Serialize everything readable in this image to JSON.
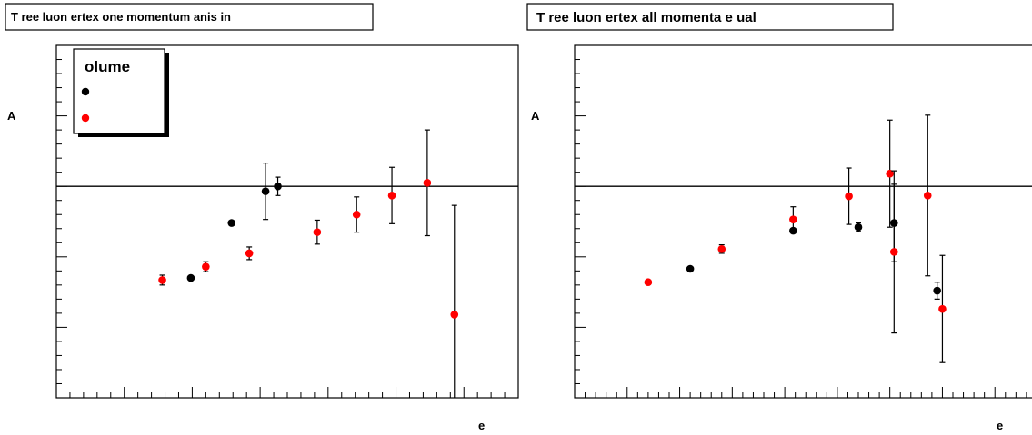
{
  "chart_data": [
    {
      "type": "scatter",
      "title": "T ree  luon  ertex  one momentum  anis in",
      "xlabel": "e",
      "ylabel": "A",
      "legend": {
        "title": "olume",
        "placement": "top-left",
        "entries": [
          "",
          ""
        ]
      },
      "reference_line_y": 0,
      "series": [
        {
          "color": "#000000",
          "points": [
            {
              "x": 0.49,
              "y": -1.3,
              "err": 0.0
            },
            {
              "x": 0.79,
              "y": -0.52,
              "err": 0.0
            },
            {
              "x": 1.04,
              "y": -0.07,
              "err": 0.4
            },
            {
              "x": 1.13,
              "y": 0.0,
              "err": 0.13
            }
          ]
        },
        {
          "color": "#ff0000",
          "points": [
            {
              "x": 0.28,
              "y": -1.33,
              "err": 0.07
            },
            {
              "x": 0.6,
              "y": -1.14,
              "err": 0.07
            },
            {
              "x": 0.92,
              "y": -0.95,
              "err": 0.09
            },
            {
              "x": 1.42,
              "y": -0.65,
              "err": 0.17
            },
            {
              "x": 1.71,
              "y": -0.4,
              "err": 0.25
            },
            {
              "x": 1.97,
              "y": -0.13,
              "err": 0.4
            },
            {
              "x": 2.23,
              "y": 0.05,
              "err": 0.75
            },
            {
              "x": 2.43,
              "y": -1.82,
              "err": 1.55
            }
          ]
        }
      ],
      "xlim": [
        -0.5,
        2.9
      ],
      "ylim": [
        -3.0,
        2.0
      ]
    },
    {
      "type": "scatter",
      "title": "T ree  luon  ertex  all momenta e ual",
      "xlabel": "e",
      "ylabel": "A",
      "reference_line_y": 0,
      "series": [
        {
          "color": "#000000",
          "points": [
            {
              "x": 0.1,
              "y": -1.17,
              "err": 0.0
            },
            {
              "x": 1.08,
              "y": -0.63,
              "err": 0.0
            },
            {
              "x": 1.7,
              "y": -0.58,
              "err": 0.06
            },
            {
              "x": 2.04,
              "y": -0.52,
              "err": 0.55
            },
            {
              "x": 2.45,
              "y": -1.48,
              "err": 0.12
            }
          ]
        },
        {
          "color": "#ff0000",
          "points": [
            {
              "x": -0.3,
              "y": -1.36,
              "err": 0.0
            },
            {
              "x": 0.4,
              "y": -0.89,
              "err": 0.06
            },
            {
              "x": 1.08,
              "y": -0.47,
              "err": 0.18
            },
            {
              "x": 1.61,
              "y": -0.14,
              "err": 0.4
            },
            {
              "x": 2.0,
              "y": 0.18,
              "err": 0.76
            },
            {
              "x": 2.04,
              "y": -0.93,
              "err": 1.15
            },
            {
              "x": 2.36,
              "y": -0.13,
              "err": 1.14
            },
            {
              "x": 2.5,
              "y": -1.74,
              "err": 0.76
            }
          ]
        }
      ],
      "xlim": [
        -1.0,
        3.5
      ],
      "ylim": [
        -3.0,
        2.0
      ]
    }
  ]
}
